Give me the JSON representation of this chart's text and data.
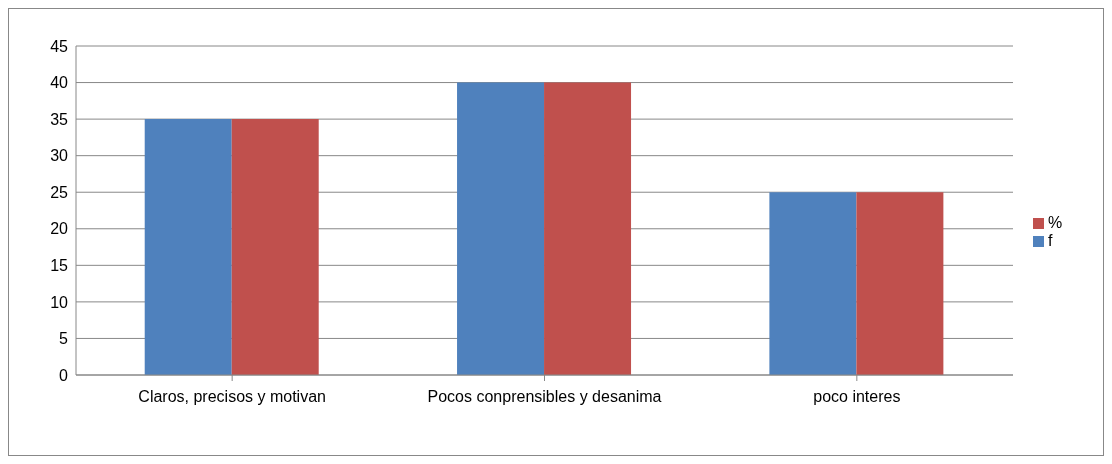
{
  "chart_data": {
    "type": "bar",
    "categories": [
      "Claros, precisos y motivan",
      "Pocos conprensibles y desanima",
      "poco interes"
    ],
    "series": [
      {
        "name": "f",
        "color": "#4f81bd",
        "values": [
          35,
          40,
          25
        ]
      },
      {
        "name": "%",
        "color": "#c0504d",
        "values": [
          35,
          40,
          25
        ]
      }
    ],
    "ylim": [
      0,
      45
    ],
    "yticks": [
      0,
      5,
      10,
      15,
      20,
      25,
      30,
      35,
      40,
      45
    ],
    "grid": "y",
    "legend": "right"
  }
}
